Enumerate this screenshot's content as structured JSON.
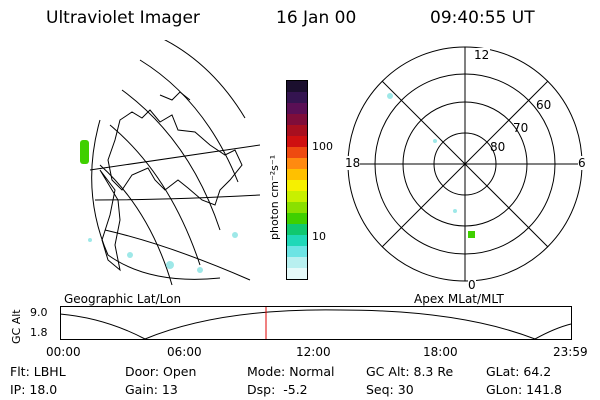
{
  "header": {
    "instrument": "Ultraviolet Imager",
    "date": "16 Jan 00",
    "time": "09:40:55 UT"
  },
  "geo_panel": {
    "label": "Geographic Lat/Lon"
  },
  "colorbar": {
    "unit_label": "photon cm⁻²s⁻¹",
    "ticks": [
      "100",
      "10"
    ],
    "colors": [
      "#1b0f2e",
      "#341450",
      "#5a0f55",
      "#7f0d3a",
      "#a80f1f",
      "#cf1010",
      "#ee4a10",
      "#ff8a10",
      "#ffc000",
      "#f6f000",
      "#c8f000",
      "#8ae000",
      "#3fd000",
      "#10c870",
      "#20d8b8",
      "#6ce4e4",
      "#b8f0f0",
      "#e6fafa"
    ]
  },
  "polar_panel": {
    "label": "Apex MLat/MLT",
    "mlt_labels": {
      "top": "12",
      "right": "6",
      "bottom": "0",
      "left": "18"
    },
    "lat_labels": [
      "60",
      "70",
      "80"
    ]
  },
  "timeline": {
    "y_axis_label": "GC Alt",
    "y_ticks": [
      "9.0",
      "1.8"
    ],
    "x_ticks": [
      "00:00",
      "06:00",
      "12:00",
      "18:00",
      "23:59"
    ],
    "marker_color": "#e00000"
  },
  "footer": {
    "row1": [
      "Flt: LBHL",
      "Door: Open",
      "Mode: Normal",
      "GC Alt: 8.3 Re",
      "GLat: 64.2"
    ],
    "row2": [
      "IP: 18.0",
      "Gain: 13",
      "Dsp:  -5.2",
      "Seq: 30",
      "GLon: 141.8"
    ]
  }
}
